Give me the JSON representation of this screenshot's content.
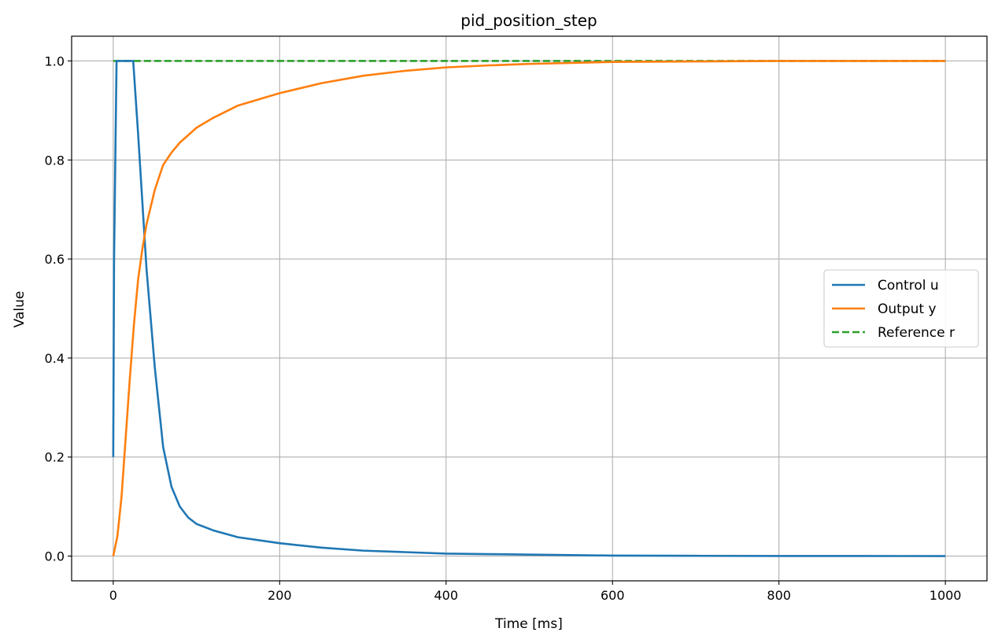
{
  "chart_data": {
    "type": "line",
    "title": "pid_position_step",
    "xlabel": "Time [ms]",
    "ylabel": "Value",
    "xlim": [
      -50,
      1050
    ],
    "ylim": [
      -0.05,
      1.05
    ],
    "xticks": [
      0,
      200,
      400,
      600,
      800,
      1000
    ],
    "yticks": [
      0.0,
      0.2,
      0.4,
      0.6,
      0.8,
      1.0
    ],
    "xtick_labels": [
      "0",
      "200",
      "400",
      "600",
      "800",
      "1000"
    ],
    "ytick_labels": [
      "0.0",
      "0.2",
      "0.4",
      "0.6",
      "0.8",
      "1.0"
    ],
    "grid": true,
    "legend_position": "center-right",
    "series": [
      {
        "name": "Control u",
        "color": "#1f77b4",
        "style": "solid",
        "x": [
          0,
          1,
          4,
          10,
          20,
          24,
          30,
          40,
          50,
          60,
          70,
          80,
          90,
          100,
          120,
          150,
          200,
          250,
          300,
          350,
          400,
          450,
          500,
          550,
          600,
          700,
          800,
          900,
          1000
        ],
        "y": [
          0.2,
          0.6,
          1.0,
          1.0,
          1.0,
          1.0,
          0.85,
          0.58,
          0.38,
          0.22,
          0.14,
          0.1,
          0.078,
          0.065,
          0.052,
          0.038,
          0.026,
          0.017,
          0.011,
          0.008,
          0.005,
          0.004,
          0.003,
          0.002,
          0.001,
          0.0005,
          0.0002,
          0.0001,
          0.0
        ]
      },
      {
        "name": "Output y",
        "color": "#ff7f0e",
        "style": "solid",
        "x": [
          0,
          5,
          10,
          15,
          20,
          25,
          30,
          35,
          40,
          50,
          60,
          70,
          80,
          100,
          120,
          150,
          200,
          250,
          300,
          350,
          400,
          450,
          500,
          550,
          600,
          700,
          800,
          900,
          1000
        ],
        "y": [
          0.0,
          0.04,
          0.12,
          0.24,
          0.36,
          0.47,
          0.56,
          0.62,
          0.67,
          0.74,
          0.79,
          0.815,
          0.835,
          0.865,
          0.885,
          0.91,
          0.935,
          0.955,
          0.97,
          0.98,
          0.987,
          0.991,
          0.994,
          0.996,
          0.998,
          0.999,
          1.0,
          1.0,
          1.0
        ]
      },
      {
        "name": "Reference r",
        "color": "#2ca02c",
        "style": "dashed",
        "x": [
          0,
          1000
        ],
        "y": [
          1.0,
          1.0
        ]
      }
    ]
  }
}
